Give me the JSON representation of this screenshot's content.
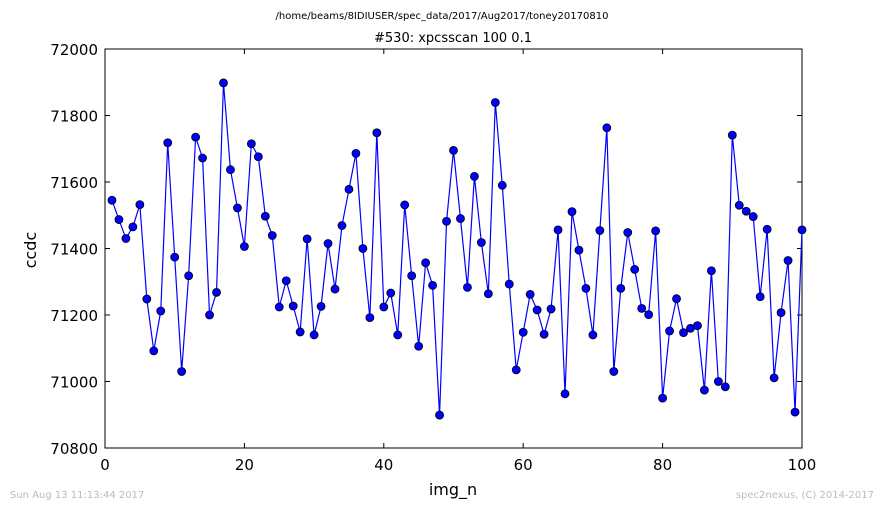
{
  "header": {
    "path": "/home/beams/8IDIUSER/spec_data/2017/Aug2017/toney20170810"
  },
  "footer": {
    "timestamp": "Sun Aug 13 11:13:44 2017",
    "credit": "spec2nexus, (C) 2014-2017"
  },
  "colors": {
    "line": "#0000ff",
    "marker": "#0000ff",
    "marker_edge": "#000000",
    "axes": "#000000",
    "footer_text": "#bbbbbb"
  },
  "chart_data": {
    "type": "line",
    "title": "#530: xpcsscan 100 0.1",
    "xlabel": "img_n",
    "ylabel": "ccdc",
    "xlim": [
      0,
      100
    ],
    "ylim": [
      70800,
      72000
    ],
    "xticks": [
      0,
      20,
      40,
      60,
      80,
      100
    ],
    "yticks": [
      70800,
      71000,
      71200,
      71400,
      71600,
      71800,
      72000
    ],
    "grid": false,
    "series": [
      {
        "marker": "circle",
        "x": [
          1,
          2,
          3,
          4,
          5,
          6,
          7,
          8,
          9,
          10,
          11,
          12,
          13,
          14,
          15,
          16,
          17,
          18,
          19,
          20,
          21,
          22,
          23,
          24,
          25,
          26,
          27,
          28,
          29,
          30,
          31,
          32,
          33,
          34,
          35,
          36,
          37,
          38,
          39,
          40,
          41,
          42,
          43,
          44,
          45,
          46,
          47,
          48,
          49,
          50,
          51,
          52,
          53,
          54,
          55,
          56,
          57,
          58,
          59,
          60,
          61,
          62,
          63,
          64,
          65,
          66,
          67,
          68,
          69,
          70,
          71,
          72,
          73,
          74,
          75,
          76,
          77,
          78,
          79,
          80,
          81,
          82,
          83,
          84,
          85,
          86,
          87,
          88,
          89,
          90,
          91,
          92,
          93,
          94,
          95,
          96,
          97,
          98,
          99,
          100
        ],
        "y": [
          71545,
          71487,
          71430,
          71465,
          71532,
          71248,
          71092,
          71212,
          71718,
          71374,
          71030,
          71318,
          71735,
          71672,
          71200,
          71268,
          71898,
          71637,
          71522,
          71406,
          71715,
          71676,
          71497,
          71439,
          71224,
          71303,
          71227,
          71149,
          71429,
          71140,
          71226,
          71415,
          71278,
          71469,
          71578,
          71686,
          71400,
          71192,
          71748,
          71224,
          71266,
          71140,
          71531,
          71318,
          71106,
          71357,
          71289,
          70899,
          71482,
          71695,
          71490,
          71283,
          71617,
          71418,
          71264,
          71839,
          71590,
          71293,
          71035,
          71148,
          71262,
          71215,
          71142,
          71218,
          71456,
          70963,
          71511,
          71395,
          71280,
          71140,
          71454,
          71763,
          71030,
          71280,
          71448,
          71337,
          71220,
          71201,
          71453,
          70950,
          71152,
          71249,
          71147,
          71160,
          71168,
          70974,
          71333,
          71000,
          70984,
          71741,
          71530,
          71512,
          71496,
          71255,
          71458,
          71011,
          71207,
          71364,
          70908,
          71456
        ]
      }
    ]
  }
}
